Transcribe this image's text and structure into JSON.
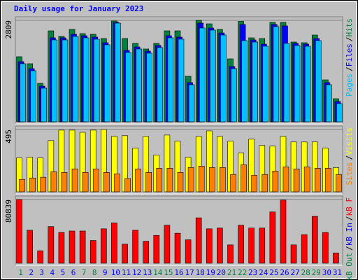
{
  "chart_data": [
    {
      "type": "bar",
      "title": "Daily usage for January 2023",
      "legend_separator": "/",
      "ylim": [
        0,
        2809
      ],
      "yticks": [
        2809
      ],
      "grid": true,
      "series": [
        {
          "name": "Hits",
          "color": "#008040",
          "values": [
            1802,
            1608,
            1065,
            2518,
            2363,
            2557,
            2441,
            2422,
            2305,
            2790,
            2305,
            2170,
            2015,
            2170,
            2518,
            2518,
            1259,
            2809,
            2712,
            2557,
            1743,
            2780,
            2325,
            2305,
            2751,
            2751,
            2208,
            2189,
            2402,
            1162,
            639
          ]
        },
        {
          "name": "Files",
          "color": "#0000ff",
          "values": [
            1666,
            1472,
            988,
            2325,
            2325,
            2421,
            2383,
            2344,
            2189,
            2751,
            1976,
            2073,
            1957,
            2112,
            2383,
            2344,
            1085,
            2732,
            2596,
            2460,
            1530,
            2693,
            2267,
            2150,
            2693,
            2654,
            2170,
            2150,
            2305,
            1085,
            562
          ]
        },
        {
          "name": "Pages",
          "color": "#00c0ff",
          "values": [
            1608,
            1414,
            930,
            2267,
            2267,
            2363,
            2325,
            2286,
            2131,
            2731,
            1918,
            2015,
            1899,
            2054,
            2325,
            2286,
            1027,
            2596,
            2538,
            2402,
            1472,
            2247,
            2209,
            2092,
            2635,
            2170,
            2112,
            2092,
            2247,
            1027,
            504
          ]
        }
      ]
    },
    {
      "type": "bar",
      "ylim": [
        0,
        495
      ],
      "yticks": [
        495
      ],
      "grid": true,
      "series": [
        {
          "name": "Visits",
          "color": "#ffff00",
          "values": [
            270,
            275,
            270,
            407,
            490,
            490,
            473,
            490,
            495,
            440,
            446,
            347,
            440,
            292,
            451,
            402,
            275,
            440,
            484,
            440,
            402,
            308,
            418,
            369,
            363,
            440,
            396,
            396,
            396,
            347,
            193
          ]
        },
        {
          "name": "Sites",
          "color": "#ff8000",
          "values": [
            99,
            110,
            116,
            160,
            154,
            182,
            154,
            182,
            154,
            143,
            105,
            182,
            154,
            187,
            187,
            154,
            193,
            204,
            193,
            193,
            138,
            215,
            132,
            138,
            165,
            198,
            182,
            198,
            187,
            187,
            138
          ]
        }
      ]
    },
    {
      "type": "bar",
      "ylim": [
        0,
        80839
      ],
      "yticks": [
        80839
      ],
      "grid": true,
      "categories": [
        "1",
        "2",
        "3",
        "4",
        "5",
        "6",
        "7",
        "8",
        "9",
        "10",
        "11",
        "12",
        "13",
        "14",
        "15",
        "16",
        "17",
        "18",
        "19",
        "20",
        "21",
        "22",
        "23",
        "24",
        "25",
        "26",
        "27",
        "28",
        "29",
        "30",
        "31"
      ],
      "category_colors": [
        "#008040",
        "#0000ff",
        "#0000ff",
        "#0000ff",
        "#0000ff",
        "#0000ff",
        "#008040",
        "#008040",
        "#0000ff",
        "#0000ff",
        "#0000ff",
        "#0000ff",
        "#0000ff",
        "#008040",
        "#008040",
        "#0000ff",
        "#0000ff",
        "#0000ff",
        "#0000ff",
        "#0000ff",
        "#008040",
        "#008040",
        "#0000ff",
        "#0000ff",
        "#0000ff",
        "#0000ff",
        "#0000ff",
        "#008040",
        "#008040",
        "#0000ff",
        "#0000ff"
      ],
      "series": [
        {
          "name": "kB F",
          "color": "#ff0000",
          "values": [
            80839,
            41805,
            15793,
            46450,
            39018,
            40876,
            40876,
            28799,
            43663,
            51095,
            24154,
            41805,
            27870,
            35302,
            48308,
            38089,
            29728,
            57598,
            43663,
            44592,
            23225,
            48308,
            44592,
            44592,
            65030,
            80100,
            23225,
            36231,
            59456,
            39018,
            13006
          ]
        },
        {
          "name": "kB In",
          "color": "#0000ff",
          "values": [
            0,
            0,
            0,
            0,
            0,
            0,
            0,
            0,
            0,
            0,
            0,
            0,
            0,
            0,
            0,
            0,
            0,
            0,
            0,
            0,
            0,
            0,
            0,
            0,
            0,
            0,
            0,
            0,
            0,
            0,
            0
          ]
        },
        {
          "name": "kB Out",
          "color": "#008040",
          "values": [
            0,
            0,
            0,
            0,
            0,
            0,
            0,
            0,
            0,
            0,
            0,
            0,
            0,
            0,
            0,
            0,
            0,
            0,
            0,
            0,
            0,
            0,
            0,
            0,
            0,
            0,
            0,
            0,
            0,
            0,
            0
          ]
        }
      ]
    }
  ]
}
